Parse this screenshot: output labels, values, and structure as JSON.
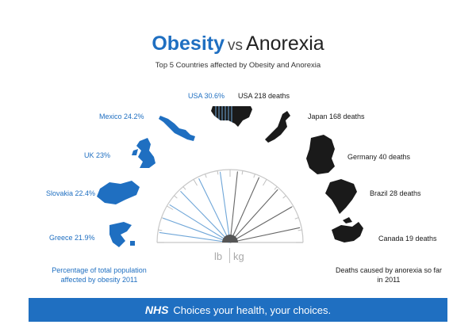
{
  "title": {
    "word1": "Obesity",
    "joiner": "vs",
    "word2": "Anorexia"
  },
  "subtitle": "Top 5 Countries affected by Obesity and Anorexia",
  "obesity": [
    {
      "label": "USA 30.6%"
    },
    {
      "label": "Mexico 24.2%"
    },
    {
      "label": "UK 23%"
    },
    {
      "label": "Slovakia 22.4%"
    },
    {
      "label": "Greece 21.9%"
    }
  ],
  "anorexia": [
    {
      "label": "USA 218 deaths"
    },
    {
      "label": "Japan 168 deaths"
    },
    {
      "label": "Germany 40 deaths"
    },
    {
      "label": "Brazil 28 deaths"
    },
    {
      "label": "Canada 19 deaths"
    }
  ],
  "left_note": "Percentage of total population affected by obesity 2011",
  "right_note": "Deaths caused by anorexia so far in 2011",
  "gauge": {
    "unit_left": "lb",
    "unit_right": "kg"
  },
  "footer": {
    "brand": "NHS",
    "tagline": "Choices your health, your choices."
  },
  "colors": {
    "obesity": "#1f6fc1",
    "anorexia": "#1a1a1a",
    "needle_blue": "#6fa6d8",
    "needle_dark": "#666666"
  }
}
